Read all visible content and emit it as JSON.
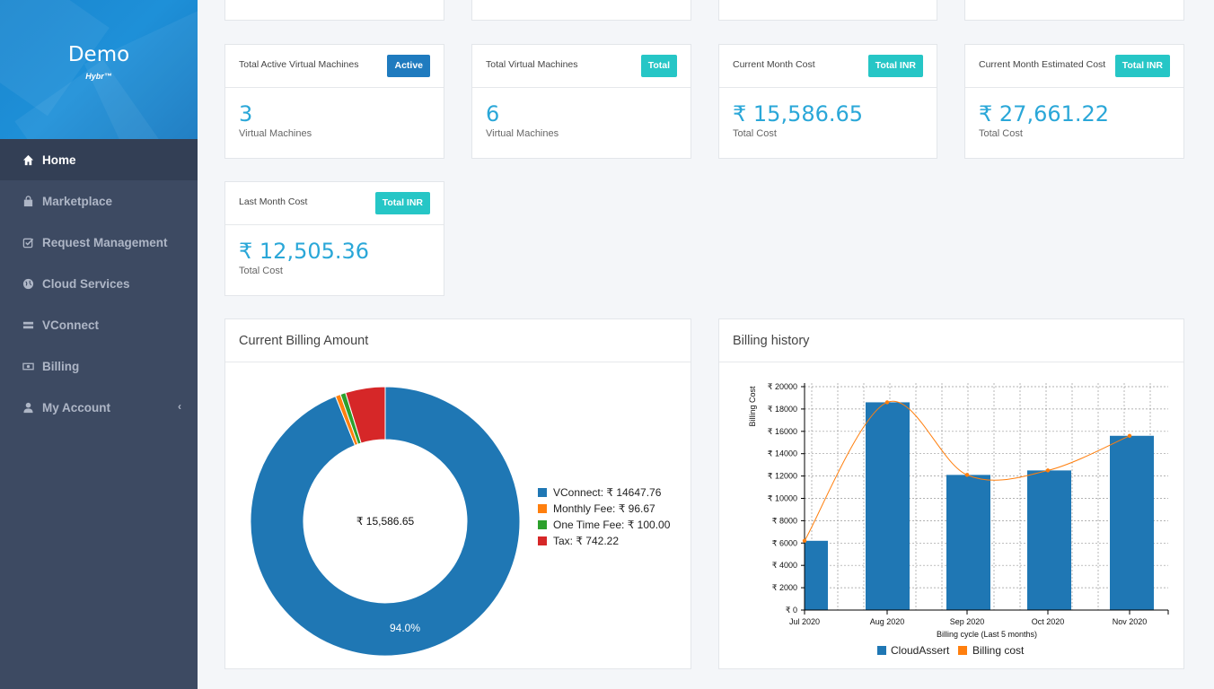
{
  "brand": {
    "title": "Demo",
    "subtitle": "Hybr™"
  },
  "nav": [
    {
      "label": "Home",
      "icon": "home-icon",
      "active": true
    },
    {
      "label": "Marketplace",
      "icon": "shopping-bag-icon"
    },
    {
      "label": "Request Management",
      "icon": "check-square-icon"
    },
    {
      "label": "Cloud Services",
      "icon": "globe-icon"
    },
    {
      "label": "VConnect",
      "icon": "server-icon"
    },
    {
      "label": "Billing",
      "icon": "money-icon"
    },
    {
      "label": "My Account",
      "icon": "user-icon"
    }
  ],
  "cards": [
    {
      "label": "Total Active Virtual Machines",
      "badge": "Active",
      "value": "3",
      "sub": "Virtual Machines"
    },
    {
      "label": "Total Virtual Machines",
      "badge": "Total",
      "value": "6",
      "sub": "Virtual Machines"
    },
    {
      "label": "Current Month Cost",
      "badge": "Total INR",
      "value": "₹ 15,586.65",
      "sub": "Total Cost"
    },
    {
      "label": "Current Month Estimated Cost",
      "badge": "Total INR",
      "value": "₹ 27,661.22",
      "sub": "Total Cost"
    },
    {
      "label": "Last Month Cost",
      "badge": "Total INR",
      "value": "₹ 12,505.36",
      "sub": "Total Cost"
    }
  ],
  "billing_panel": {
    "title": "Current Billing Amount",
    "center_label": "₹ 15,586.65",
    "slice_label": "94.0%"
  },
  "history_panel": {
    "title": "Billing history"
  },
  "colors": {
    "blue": "#1f77b4",
    "orange": "#ff7f0e",
    "green": "#2ca02c",
    "red": "#d62728"
  },
  "chart_data": [
    {
      "type": "pie",
      "labels": [
        "VConnect: ₹ 14647.76",
        "Monthly Fee: ₹ 96.67",
        "One Time Fee: ₹ 100.00",
        "Tax: ₹ 742.22"
      ],
      "values": [
        14647.76,
        96.67,
        100.0,
        742.22
      ],
      "legend": "right"
    },
    {
      "type": "bar",
      "categories": [
        "Jul 2020",
        "Aug 2020",
        "Sep 2020",
        "Oct 2020",
        "Nov 2020"
      ],
      "series": [
        {
          "name": "CloudAssert",
          "type": "bar",
          "values": [
            6200,
            18600,
            12100,
            12500,
            15600
          ]
        },
        {
          "name": "Billing cost",
          "type": "line",
          "values": [
            6200,
            18600,
            12100,
            12500,
            15600
          ]
        }
      ],
      "xlabel": "Billing cycle (Last 5 months)",
      "ylabel": "Billing Cost",
      "yticks": [
        "₹ 0",
        "₹ 2000",
        "₹ 4000",
        "₹ 6000",
        "₹ 8000",
        "₹ 10000",
        "₹ 12000",
        "₹ 14000",
        "₹ 16000",
        "₹ 18000",
        "₹ 20000"
      ],
      "ylim": [
        0,
        20000
      ],
      "grid": true,
      "legend": "bottom"
    }
  ]
}
